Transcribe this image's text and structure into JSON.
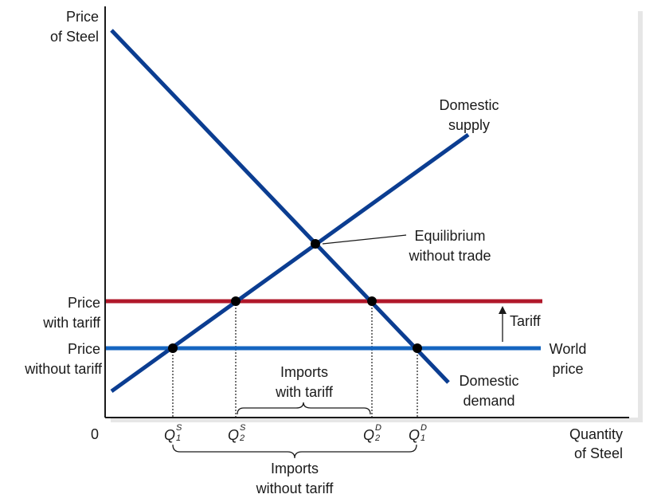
{
  "axes": {
    "y_label": [
      "Price",
      "of Steel"
    ],
    "x_label": [
      "Quantity",
      "of Steel"
    ],
    "origin": "0"
  },
  "price_labels": {
    "with_tariff": [
      "Price",
      "with tariff"
    ],
    "without_tariff": [
      "Price",
      "without tariff"
    ]
  },
  "curves": {
    "supply": [
      "Domestic",
      "supply"
    ],
    "demand": [
      "Domestic",
      "demand"
    ],
    "world_price": [
      "World",
      "price"
    ]
  },
  "annotations": {
    "equilibrium": [
      "Equilibrium",
      "without trade"
    ],
    "tariff": "Tariff",
    "imports_with_tariff": [
      "Imports",
      "with tariff"
    ],
    "imports_without_tariff": [
      "Imports",
      "without tariff"
    ]
  },
  "quantity_marks": [
    {
      "id": "q1s",
      "base": "Q",
      "sup": "S",
      "sub": "1"
    },
    {
      "id": "q2s",
      "base": "Q",
      "sup": "S",
      "sub": "2"
    },
    {
      "id": "q2d",
      "base": "Q",
      "sup": "D",
      "sub": "2"
    },
    {
      "id": "q1d",
      "base": "Q",
      "sup": "D",
      "sub": "1"
    }
  ],
  "colors": {
    "curve_blue": "#0b3d91",
    "world_price_blue": "#1565c0",
    "tariff_red": "#b0182a",
    "axis": "#1a1a1a",
    "shadow": "#e6e6e6"
  }
}
